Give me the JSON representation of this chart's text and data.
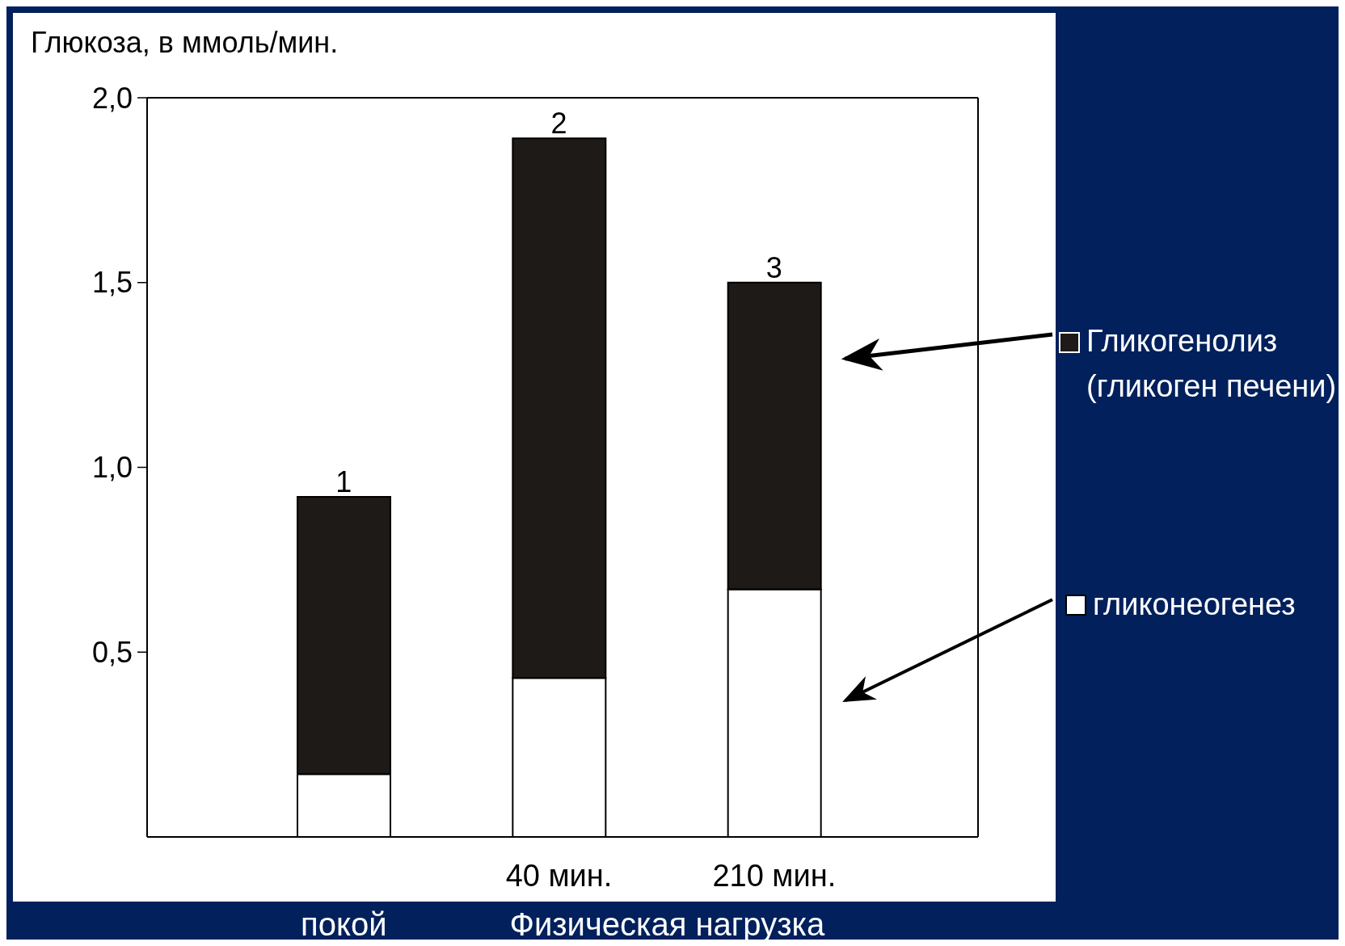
{
  "chart_data": {
    "type": "bar",
    "stacked": true,
    "ylabel": "Глюкоза, в ммоль/мин.",
    "categories": [
      null,
      "40 мин.",
      "210 мин."
    ],
    "series": [
      {
        "name": "гликонеогенез",
        "color": "#ffffff",
        "values": [
          0.17,
          0.43,
          0.67
        ]
      },
      {
        "name": "Гликогенолиз (гликоген печени)",
        "color": "#1e1a17",
        "values": [
          0.75,
          1.46,
          0.83
        ]
      }
    ],
    "ylim": [
      0,
      2
    ],
    "yticks": [
      {
        "value": 0.5,
        "label": "0,5"
      },
      {
        "value": 1,
        "label": "1,0"
      },
      {
        "value": 1.5,
        "label": "1,5"
      },
      {
        "value": 2,
        "label": "2,0"
      }
    ],
    "grid": false,
    "legend": "right",
    "annotations": [
      "1",
      "2",
      "3",
      "покой",
      "Физическая нагрузка"
    ]
  }
}
